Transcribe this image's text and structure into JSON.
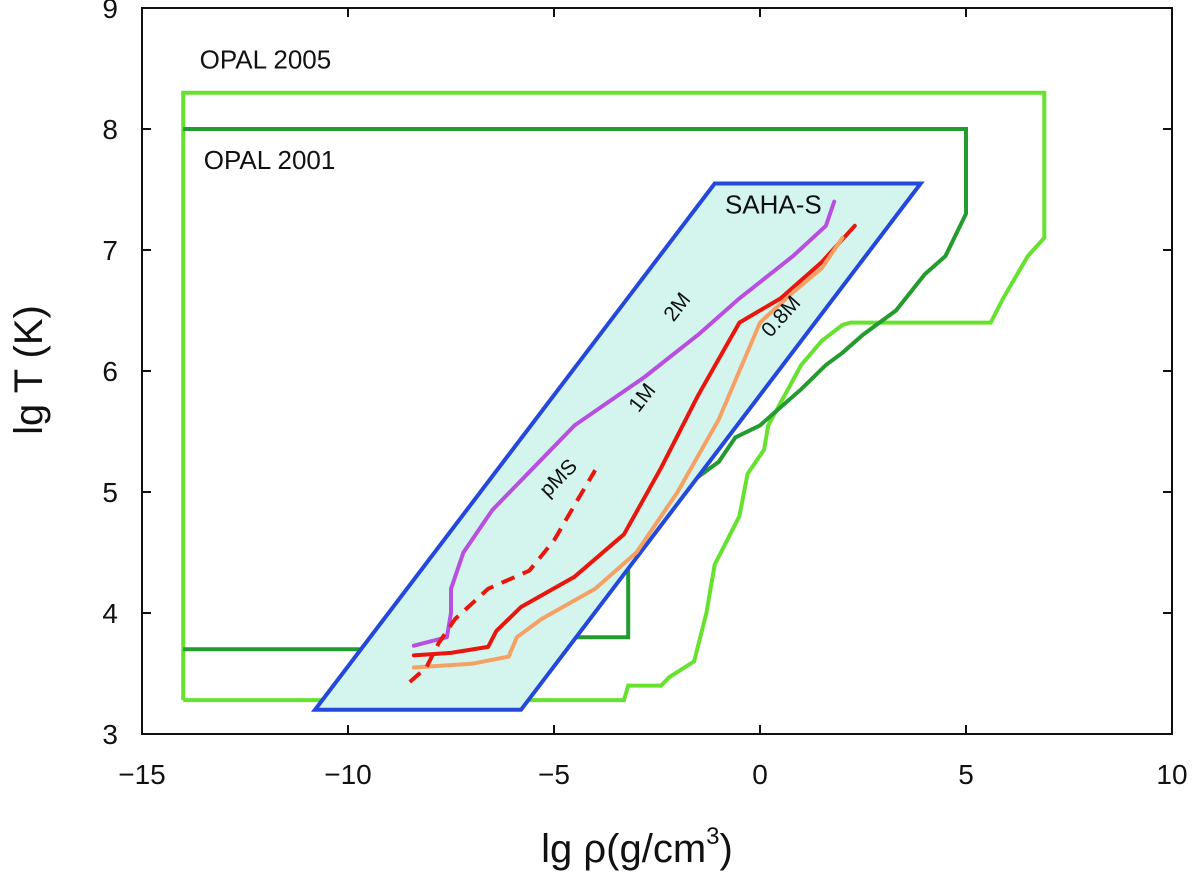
{
  "chart_data": {
    "type": "line",
    "xlabel": "lg ρ(g/cm³)",
    "ylabel": "lg T (K)",
    "xlabel_main": "lg ρ(g/cm",
    "xlabel_sup": "3",
    "xlabel_close": ")",
    "xlim": [
      -15,
      10
    ],
    "ylim": [
      3,
      9
    ],
    "xticks": [
      -15,
      -10,
      -5,
      0,
      5,
      10
    ],
    "xtick_labels": [
      "−15",
      "−10",
      "−5",
      "0",
      "5",
      "10"
    ],
    "yticks": [
      3,
      4,
      5,
      6,
      7,
      8,
      9
    ],
    "ytick_labels": [
      "3",
      "4",
      "5",
      "6",
      "7",
      "8",
      "9"
    ],
    "regions": [
      {
        "name": "OPAL 2005",
        "color": "#66e22e",
        "points": [
          [
            -14,
            3.28
          ],
          [
            -3.3,
            3.28
          ],
          [
            -3.2,
            3.4
          ],
          [
            -2.4,
            3.4
          ],
          [
            -2.2,
            3.47
          ],
          [
            -1.6,
            3.6
          ],
          [
            -1.3,
            4.0
          ],
          [
            -1.1,
            4.4
          ],
          [
            -0.5,
            4.8
          ],
          [
            -0.3,
            5.15
          ],
          [
            0.1,
            5.35
          ],
          [
            0.2,
            5.55
          ],
          [
            0.6,
            5.8
          ],
          [
            1.0,
            6.05
          ],
          [
            1.5,
            6.25
          ],
          [
            2.0,
            6.38
          ],
          [
            2.2,
            6.4
          ],
          [
            5.6,
            6.4
          ],
          [
            5.9,
            6.6
          ],
          [
            6.5,
            6.95
          ],
          [
            6.9,
            7.1
          ],
          [
            6.9,
            8.3
          ],
          [
            -14,
            8.3
          ],
          [
            -14,
            3.28
          ]
        ]
      },
      {
        "name": "OPAL 2001",
        "color": "#239b2e",
        "points": [
          [
            -14,
            8.0
          ],
          [
            5.0,
            8.0
          ],
          [
            5.0,
            7.3
          ],
          [
            4.5,
            6.95
          ],
          [
            4.0,
            6.8
          ],
          [
            3.3,
            6.5
          ],
          [
            2.5,
            6.3
          ],
          [
            2.0,
            6.15
          ],
          [
            1.6,
            6.05
          ],
          [
            1.0,
            5.85
          ],
          [
            0.5,
            5.7
          ],
          [
            0.0,
            5.55
          ],
          [
            -0.6,
            5.45
          ],
          [
            -1.0,
            5.25
          ],
          [
            -1.6,
            5.1
          ],
          [
            -2.2,
            4.9
          ],
          [
            -2.8,
            4.7
          ],
          [
            -3.2,
            4.65
          ],
          [
            -3.2,
            3.8
          ],
          [
            -5.2,
            3.8
          ],
          [
            -5.2,
            3.7
          ],
          [
            -14,
            3.7
          ]
        ]
      },
      {
        "name": "SAHA-S",
        "color": "#2448dc",
        "fill": "#d4f5ee",
        "points": [
          [
            -10.8,
            3.2
          ],
          [
            -5.8,
            3.2
          ],
          [
            3.9,
            7.55
          ],
          [
            -1.1,
            7.55
          ]
        ]
      }
    ],
    "series": [
      {
        "name": "2M",
        "color": "#b84fe0",
        "style": "solid",
        "points": [
          [
            -8.4,
            3.73
          ],
          [
            -7.6,
            3.8
          ],
          [
            -7.5,
            4.0
          ],
          [
            -7.5,
            4.2
          ],
          [
            -7.2,
            4.5
          ],
          [
            -6.5,
            4.85
          ],
          [
            -5.5,
            5.2
          ],
          [
            -4.5,
            5.55
          ],
          [
            -2.8,
            5.95
          ],
          [
            -1.5,
            6.3
          ],
          [
            -0.5,
            6.6
          ],
          [
            0.8,
            6.95
          ],
          [
            1.6,
            7.2
          ],
          [
            1.8,
            7.4
          ]
        ]
      },
      {
        "name": "1M",
        "color": "#e8160c",
        "style": "solid",
        "points": [
          [
            -8.4,
            3.65
          ],
          [
            -7.5,
            3.67
          ],
          [
            -6.6,
            3.72
          ],
          [
            -6.4,
            3.85
          ],
          [
            -5.8,
            4.05
          ],
          [
            -4.5,
            4.3
          ],
          [
            -3.3,
            4.65
          ],
          [
            -2.4,
            5.2
          ],
          [
            -1.5,
            5.8
          ],
          [
            -0.5,
            6.4
          ],
          [
            0.5,
            6.6
          ],
          [
            1.5,
            6.9
          ],
          [
            2.3,
            7.2
          ]
        ]
      },
      {
        "name": "0.8M",
        "color": "#f5a064",
        "style": "solid",
        "points": [
          [
            -8.4,
            3.55
          ],
          [
            -7.0,
            3.58
          ],
          [
            -6.1,
            3.64
          ],
          [
            -5.9,
            3.8
          ],
          [
            -5.3,
            3.95
          ],
          [
            -4.0,
            4.2
          ],
          [
            -3.0,
            4.5
          ],
          [
            -2.0,
            5.0
          ],
          [
            -1.0,
            5.6
          ],
          [
            0.0,
            6.4
          ],
          [
            0.8,
            6.65
          ],
          [
            1.5,
            6.85
          ],
          [
            2.0,
            7.1
          ]
        ]
      },
      {
        "name": "pMS",
        "color": "#e8160c",
        "style": "dashed",
        "points": [
          [
            -8.5,
            3.43
          ],
          [
            -8.1,
            3.55
          ],
          [
            -7.8,
            3.75
          ],
          [
            -7.4,
            3.95
          ],
          [
            -6.6,
            4.2
          ],
          [
            -5.6,
            4.35
          ],
          [
            -5.0,
            4.6
          ],
          [
            -4.4,
            4.95
          ],
          [
            -4.0,
            5.18
          ]
        ]
      }
    ],
    "annotations": [
      {
        "text": "OPAL 2005",
        "x": -13.6,
        "y": 8.5,
        "size": "normal",
        "rotate": 0
      },
      {
        "text": "OPAL 2001",
        "x": -13.5,
        "y": 7.67,
        "size": "normal",
        "rotate": 0
      },
      {
        "text": "SAHA-S",
        "x": -0.85,
        "y": 7.3,
        "size": "normal",
        "rotate": 0
      },
      {
        "text": "2M",
        "x": -2.1,
        "y": 6.4,
        "size": "small",
        "rotate": -52
      },
      {
        "text": "1M",
        "x": -2.95,
        "y": 5.65,
        "size": "small",
        "rotate": -52
      },
      {
        "text": "0.8M",
        "x": 0.25,
        "y": 6.27,
        "size": "small",
        "rotate": -48
      },
      {
        "text": "pMS",
        "x": -5.15,
        "y": 4.95,
        "size": "small",
        "rotate": -45
      }
    ]
  }
}
